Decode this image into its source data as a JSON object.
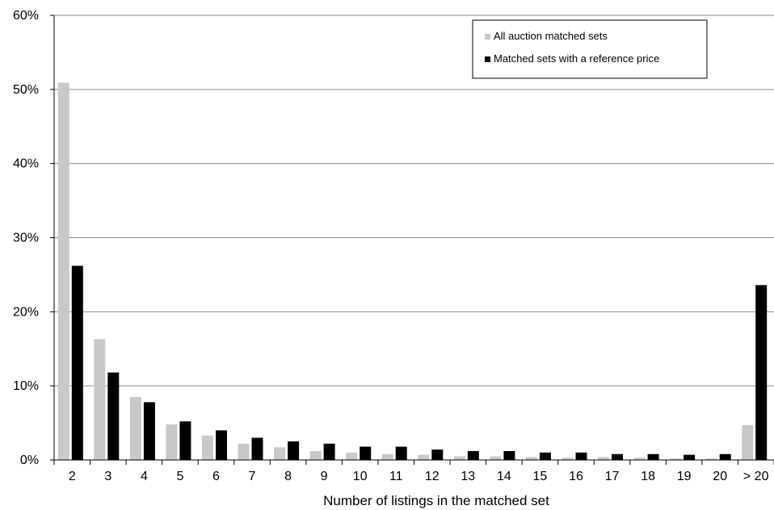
{
  "chart_data": {
    "type": "bar",
    "title": "",
    "xlabel": "Number of listings in the matched set",
    "ylabel": "",
    "ylim": [
      0,
      60
    ],
    "yticks": [
      "0%",
      "10%",
      "20%",
      "30%",
      "40%",
      "50%",
      "60%"
    ],
    "grid": "horizontal",
    "legend_position": "top-right",
    "categories": [
      "2",
      "3",
      "4",
      "5",
      "6",
      "7",
      "8",
      "9",
      "10",
      "11",
      "12",
      "13",
      "14",
      "15",
      "16",
      "17",
      "18",
      "19",
      "20",
      "> 20"
    ],
    "series": [
      {
        "name": "All auction matched sets",
        "color": "#c8c8c8",
        "values": [
          50.9,
          16.3,
          8.5,
          4.8,
          3.3,
          2.2,
          1.7,
          1.2,
          1.0,
          0.8,
          0.7,
          0.5,
          0.5,
          0.4,
          0.3,
          0.4,
          0.3,
          0.2,
          0.2,
          4.7
        ]
      },
      {
        "name": "Matched sets with a reference price",
        "color": "#000000",
        "values": [
          26.2,
          11.8,
          7.8,
          5.2,
          4.0,
          3.0,
          2.5,
          2.2,
          1.8,
          1.8,
          1.4,
          1.2,
          1.2,
          1.0,
          1.0,
          0.8,
          0.8,
          0.7,
          0.8,
          23.6
        ]
      }
    ]
  }
}
